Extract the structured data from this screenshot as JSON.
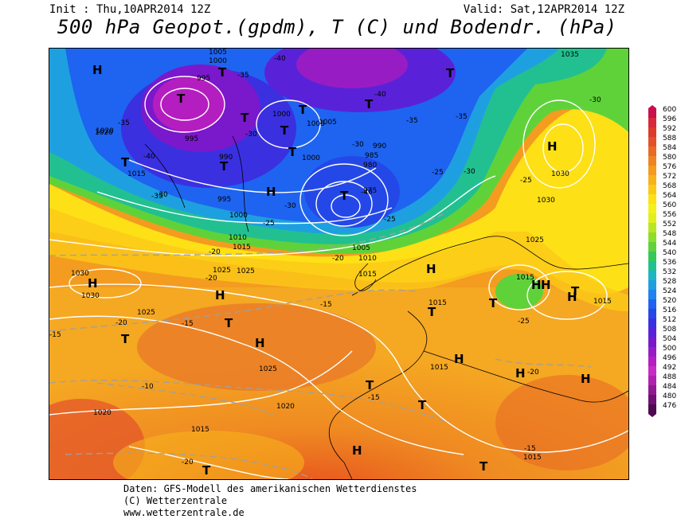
{
  "header": {
    "init": "Init : Thu,10APR2014 12Z",
    "valid": "Valid: Sat,12APR2014 12Z",
    "title": "500 hPa Geopot.(gpdm), T (C) und Bodendr. (hPa)"
  },
  "legend": {
    "labels": [
      "600",
      "596",
      "592",
      "588",
      "584",
      "580",
      "576",
      "572",
      "568",
      "564",
      "560",
      "556",
      "552",
      "548",
      "544",
      "540",
      "536",
      "532",
      "528",
      "524",
      "520",
      "516",
      "512",
      "508",
      "504",
      "500",
      "496",
      "492",
      "488",
      "484",
      "480",
      "476"
    ],
    "colors": [
      "#c8104a",
      "#d62a39",
      "#dc3a2a",
      "#e2512a",
      "#e86a25",
      "#ee8322",
      "#f39a1f",
      "#f7b21c",
      "#fbc918",
      "#fde016",
      "#f4f01a",
      "#e0f01e",
      "#b8e623",
      "#8fdc2a",
      "#5fd23a",
      "#34c85a",
      "#22c090",
      "#1eb6c0",
      "#1ea0e0",
      "#1e82f0",
      "#1e64f0",
      "#2448e8",
      "#3a30e0",
      "#5a22d8",
      "#7a18cc",
      "#981cc4",
      "#b41ec0",
      "#c82ac8",
      "#b020b0",
      "#901890",
      "#701070",
      "#500850"
    ]
  },
  "map": {
    "pressure_labels": [
      "1005",
      "1000",
      "995",
      "1000",
      "1005",
      "1015",
      "1020",
      "995",
      "990",
      "1000",
      "1005",
      "985",
      "980",
      "975",
      "990",
      "1000",
      "995",
      "1010",
      "1015",
      "1010",
      "1005",
      "1020",
      "1025",
      "1030",
      "1035",
      "1030",
      "1025",
      "1015",
      "1015",
      "1015",
      "1030",
      "1025",
      "1025",
      "1020",
      "1015",
      "1015",
      "1015",
      "1015",
      "1030",
      "1020",
      "1025"
    ],
    "temp_labels": [
      "-40",
      "-35",
      "-35",
      "-40",
      "-30",
      "-40",
      "-35",
      "-30",
      "-40",
      "-30",
      "-35",
      "-30",
      "-25",
      "-25",
      "-35",
      "-25",
      "-20",
      "-20",
      "-20",
      "-15",
      "-15",
      "-15",
      "-10",
      "-15",
      "-20",
      "-15",
      "-20",
      "-25",
      "-20",
      "-30",
      "-30",
      "-25"
    ],
    "highs": [
      "H",
      "H",
      "H",
      "H",
      "H",
      "H",
      "H",
      "H",
      "H",
      "H",
      "H",
      "H",
      "H",
      "H"
    ],
    "lows": [
      "T",
      "T",
      "T",
      "T",
      "T",
      "T",
      "T",
      "T",
      "T",
      "T",
      "T",
      "T",
      "T",
      "T",
      "T",
      "T",
      "T",
      "T",
      "T",
      "T"
    ]
  },
  "footer": {
    "line1": "Daten: GFS-Modell des amerikanischen Wetterdienstes",
    "line2": "(C) Wetterzentrale",
    "line3": "www.wetterzentrale.de"
  }
}
